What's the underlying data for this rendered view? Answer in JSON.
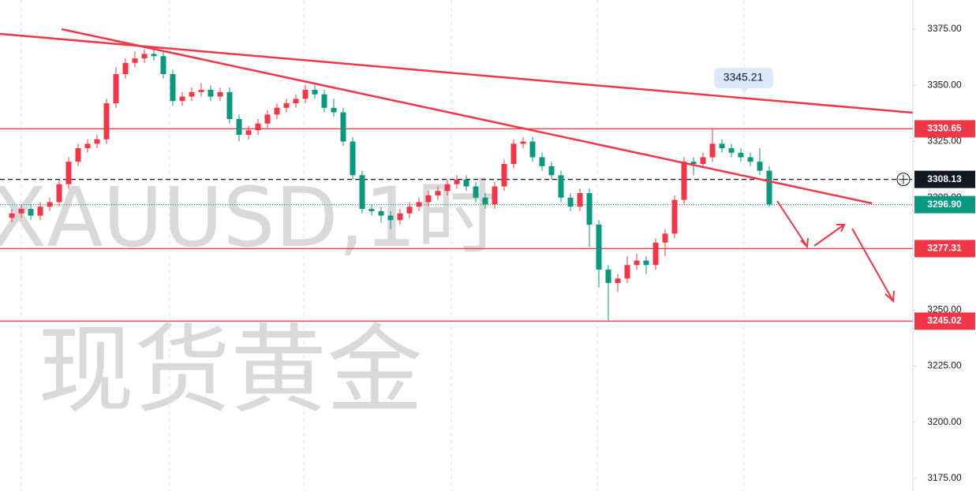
{
  "chart_data": {
    "type": "candlestick",
    "watermark": "XAUUSD,1时",
    "watermark_name": "现货黄金",
    "up_color": "#f23645",
    "down_color": "#089981",
    "ylim": [
      3169.4,
      3388.0
    ],
    "yticks": [
      {
        "value": 3175,
        "label": "3175.00"
      },
      {
        "value": 3200,
        "label": "3200.00"
      },
      {
        "value": 3225,
        "label": "3225.00"
      },
      {
        "value": 3250,
        "label": "3250.00"
      },
      {
        "value": 3275,
        "label": "3275.00"
      },
      {
        "value": 3300,
        "label": "3300.00"
      },
      {
        "value": 3325,
        "label": "3325.00"
      },
      {
        "value": 3350,
        "label": "3350.00"
      },
      {
        "value": 3375,
        "label": "3375.00"
      }
    ],
    "levels": [
      3330.65,
      3277.31,
      3245.02
    ],
    "level_color": "#f23645",
    "crosshair": 3308.13,
    "last_price": {
      "value": 3296.9,
      "label": "3296.90"
    },
    "annotation": "3345.21",
    "open": [
      3291,
      3293,
      3295,
      3292,
      3296,
      3298,
      3306,
      3316,
      3322,
      3324,
      3326,
      3342,
      3355,
      3360,
      3362,
      3364,
      3363,
      3355,
      3343,
      3345,
      3347,
      3348,
      3345,
      3347,
      3335,
      3328,
      3330,
      3333,
      3337,
      3340,
      3342,
      3344,
      3348,
      3346,
      3340,
      3338,
      3325,
      3310,
      3295,
      3294,
      3292,
      3290,
      3293,
      3296,
      3298,
      3301,
      3303,
      3306,
      3308,
      3305,
      3300,
      3297,
      3305,
      3315,
      3324,
      3325,
      3318,
      3314,
      3310,
      3300,
      3296,
      3302,
      3288,
      3268,
      3262,
      3264,
      3270,
      3272,
      3270,
      3280,
      3284,
      3299,
      3316,
      3315,
      3318,
      3324,
      3322,
      3320,
      3318,
      3316,
      3312
    ],
    "high": [
      3295,
      3297,
      3297,
      3298,
      3300,
      3308,
      3318,
      3324,
      3326,
      3328,
      3344,
      3358,
      3362,
      3365,
      3366,
      3367,
      3365,
      3357,
      3347,
      3349,
      3351,
      3350,
      3349,
      3349,
      3337,
      3332,
      3335,
      3339,
      3342,
      3344,
      3346,
      3350,
      3350,
      3348,
      3344,
      3340,
      3327,
      3312,
      3297,
      3296,
      3294,
      3295,
      3298,
      3300,
      3303,
      3305,
      3308,
      3310,
      3310,
      3307,
      3302,
      3307,
      3317,
      3326,
      3327,
      3327,
      3320,
      3316,
      3312,
      3302,
      3304,
      3304,
      3290,
      3270,
      3266,
      3274,
      3275,
      3274,
      3282,
      3286,
      3301,
      3318,
      3318,
      3320,
      3330.65,
      3326,
      3324,
      3322,
      3320,
      3322,
      3314
    ],
    "low": [
      3289,
      3291,
      3290,
      3290,
      3294,
      3296,
      3304,
      3314,
      3320,
      3322,
      3324,
      3340,
      3353,
      3358,
      3360,
      3361,
      3353,
      3341,
      3341,
      3343,
      3345,
      3343,
      3343,
      3333,
      3325,
      3326,
      3328,
      3331,
      3335,
      3338,
      3340,
      3342,
      3344,
      3338,
      3336,
      3323,
      3308,
      3293,
      3292,
      3289,
      3286,
      3288,
      3291,
      3294,
      3296,
      3299,
      3301,
      3304,
      3303,
      3298,
      3295,
      3295,
      3303,
      3313,
      3322,
      3316,
      3312,
      3308,
      3298,
      3294,
      3294,
      3278,
      3260,
      3245,
      3258,
      3262,
      3268,
      3266,
      3268,
      3274,
      3282,
      3297,
      3310,
      3313,
      3316,
      3320,
      3318,
      3316,
      3314,
      3310,
      3296
    ],
    "close": [
      3293,
      3295,
      3292,
      3296,
      3298,
      3306,
      3316,
      3322,
      3324,
      3326,
      3342,
      3355,
      3360,
      3362,
      3364,
      3363,
      3355,
      3343,
      3345,
      3347,
      3348,
      3345,
      3347,
      3335,
      3328,
      3330,
      3333,
      3337,
      3340,
      3342,
      3344,
      3348,
      3346,
      3340,
      3338,
      3325,
      3310,
      3295,
      3294,
      3292,
      3290,
      3293,
      3296,
      3298,
      3301,
      3303,
      3306,
      3308,
      3305,
      3300,
      3297,
      3305,
      3315,
      3324,
      3325,
      3318,
      3314,
      3310,
      3300,
      3296,
      3302,
      3288,
      3268,
      3262,
      3264,
      3270,
      3272,
      3270,
      3280,
      3284,
      3299,
      3316,
      3315,
      3318,
      3324,
      3322,
      3320,
      3318,
      3316,
      3312,
      3297
    ]
  }
}
